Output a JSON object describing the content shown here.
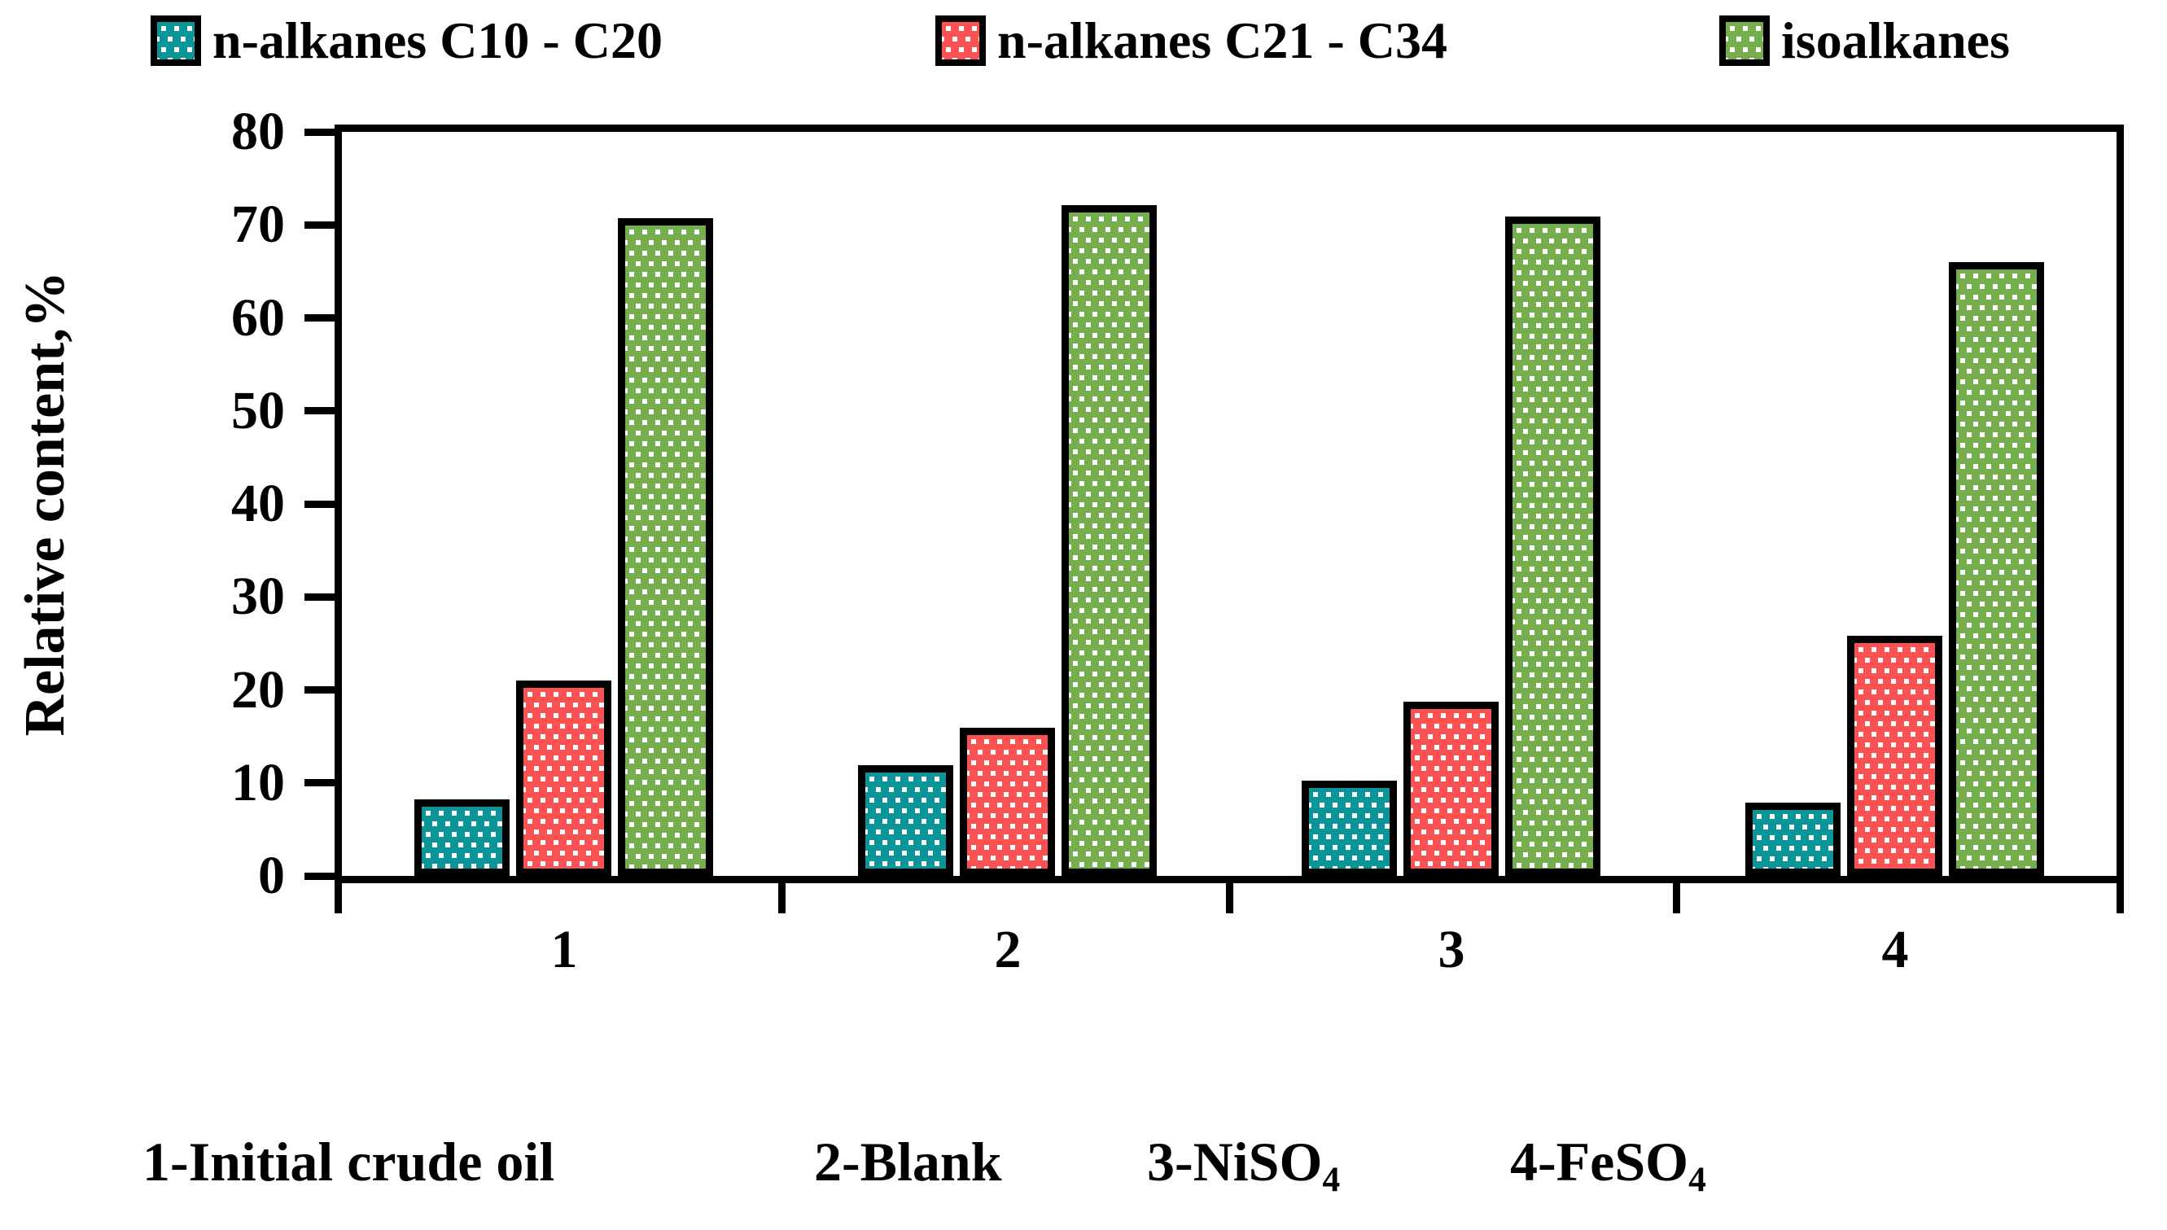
{
  "legend": {
    "items": [
      {
        "label": "n-alkanes C10 - C20",
        "color": "#0A9598"
      },
      {
        "label": "n-alkanes C21 - C34",
        "color": "#FA5252"
      },
      {
        "label": "isoalkanes",
        "color": "#77AE4D"
      }
    ]
  },
  "y_axis": {
    "label": "Relative content,%",
    "ticks": [
      0,
      10,
      20,
      30,
      40,
      50,
      60,
      70,
      80
    ]
  },
  "x_axis": {
    "categories": [
      "1",
      "2",
      "3",
      "4"
    ]
  },
  "caption": {
    "items": [
      {
        "text": "1-Initial crude oil",
        "sub": ""
      },
      {
        "text": "2-Blank",
        "sub": ""
      },
      {
        "text": "3-NiSO",
        "sub": "4"
      },
      {
        "text": "4-FeSO",
        "sub": "4"
      }
    ]
  },
  "chart_data": {
    "type": "bar",
    "title": "",
    "categories": [
      "1",
      "2",
      "3",
      "4"
    ],
    "category_descriptions": [
      "Initial crude oil",
      "Blank",
      "NiSO4",
      "FeSO4"
    ],
    "series": [
      {
        "name": "n-alkanes C10 - C20",
        "color": "#0A9598",
        "values": [
          8.2,
          11.9,
          10.2,
          7.9
        ]
      },
      {
        "name": "n-alkanes C21 - C34",
        "color": "#FA5252",
        "values": [
          21.0,
          15.9,
          18.7,
          25.8
        ]
      },
      {
        "name": "isoalkanes",
        "color": "#77AE4D",
        "values": [
          70.7,
          72.1,
          70.9,
          66.0
        ]
      }
    ],
    "xlabel": "",
    "ylabel": "Relative content,%",
    "ylim": [
      0,
      80
    ],
    "yticks": [
      0,
      10,
      20,
      30,
      40,
      50,
      60,
      70,
      80
    ],
    "grid": false,
    "legend_position": "top",
    "bar_pattern": "white square dots",
    "bar_border_color": "#000000"
  }
}
